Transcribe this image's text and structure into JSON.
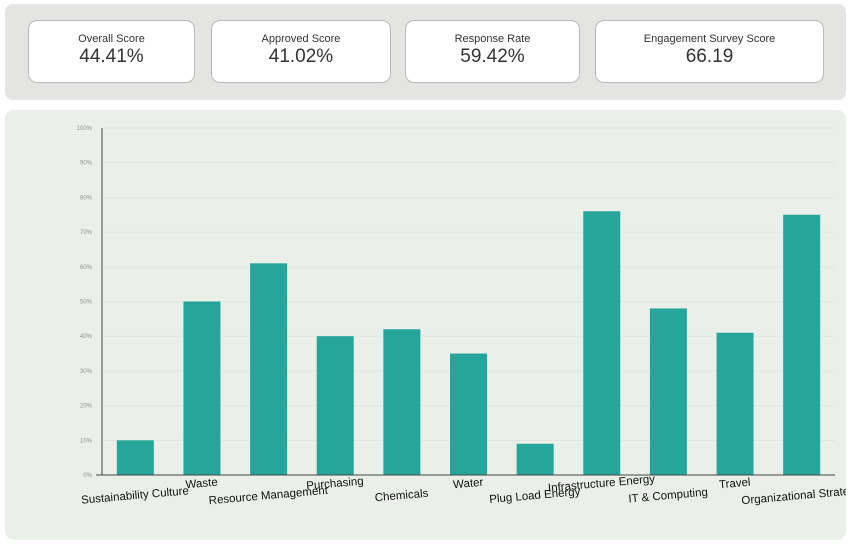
{
  "kpis": [
    {
      "label": "Overall Score",
      "value": "44.41%"
    },
    {
      "label": "Approved Score",
      "value": "41.02%"
    },
    {
      "label": "Response Rate",
      "value": "59.42%"
    },
    {
      "label": "Engagement Survey Score",
      "value": "66.19"
    }
  ],
  "colors": {
    "bar": "#26a69a",
    "panel": "#e4e5e3",
    "chart_background": "#ebefea"
  },
  "chart_data": {
    "type": "bar",
    "categories": [
      "Sustainability Culture",
      "Waste",
      "Resource Management",
      "Purchasing",
      "Chemicals",
      "Water",
      "Plug Load Energy",
      "Infrastructure Energy",
      "IT & Computing",
      "Travel",
      "Organizational Strategy"
    ],
    "values": [
      10,
      50,
      61,
      40,
      42,
      35,
      9,
      76,
      48,
      41,
      75
    ],
    "ylim": [
      0,
      100
    ],
    "yticks": [
      "0%",
      "10%",
      "20%",
      "30%",
      "40%",
      "50%",
      "60%",
      "70%",
      "80%",
      "90%",
      "100%"
    ],
    "grid": true,
    "title": "",
    "xlabel": "",
    "ylabel": ""
  }
}
